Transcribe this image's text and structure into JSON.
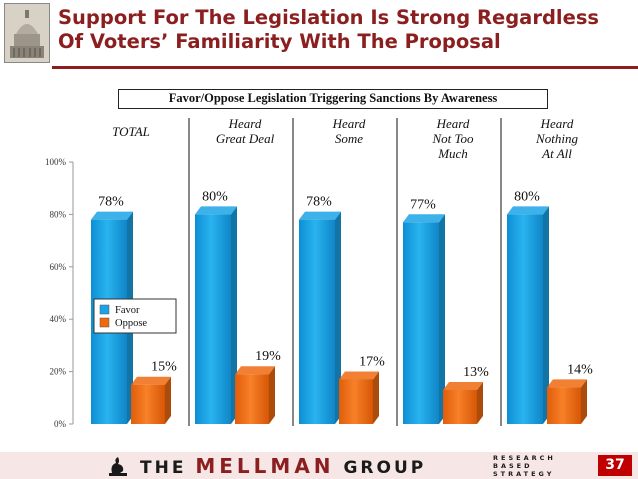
{
  "title": {
    "line1": "Support For The Legislation Is Strong Regardless",
    "line2": "Of Voters’ Familiarity With The Proposal"
  },
  "logo": {
    "icon": "capitol-dome-icon"
  },
  "footer": {
    "brand_pre": "THE ",
    "brand_main": "MELLMAN",
    "brand_post": " GROUP",
    "tag1": "RESEARCH",
    "tag2": "BASED",
    "tag3": "STRATEGY",
    "page_number": "37",
    "colors": {
      "accent": "#c00000",
      "band": "#f6e6e6"
    }
  },
  "chart_data": {
    "type": "bar",
    "title": "Favor/Oppose Legislation Triggering Sanctions By Awareness",
    "categories": [
      "TOTAL",
      "Heard Great Deal",
      "Heard Some",
      "Heard Not Too Much",
      "Heard Nothing At All"
    ],
    "category_label_lines": [
      [
        "TOTAL"
      ],
      [
        "Heard",
        "Great Deal"
      ],
      [
        "Heard",
        "Some"
      ],
      [
        "Heard",
        "Not Too",
        "Much"
      ],
      [
        "Heard",
        "Nothing",
        "At All"
      ]
    ],
    "series": [
      {
        "name": "Favor",
        "values": [
          78,
          80,
          78,
          77,
          80
        ],
        "color": "#1aa3e6",
        "labels": [
          "78%",
          "80%",
          "78%",
          "77%",
          "80%"
        ]
      },
      {
        "name": "Oppose",
        "values": [
          15,
          19,
          17,
          13,
          14
        ],
        "color": "#ee6a10",
        "labels": [
          "15%",
          "19%",
          "17%",
          "13%",
          "14%"
        ]
      }
    ],
    "yticks": [
      "0%",
      "20%",
      "40%",
      "60%",
      "80%",
      "100%"
    ],
    "ylim": [
      0,
      100
    ],
    "legend": "bottom-left inside TOTAL panel",
    "grid": false
  }
}
